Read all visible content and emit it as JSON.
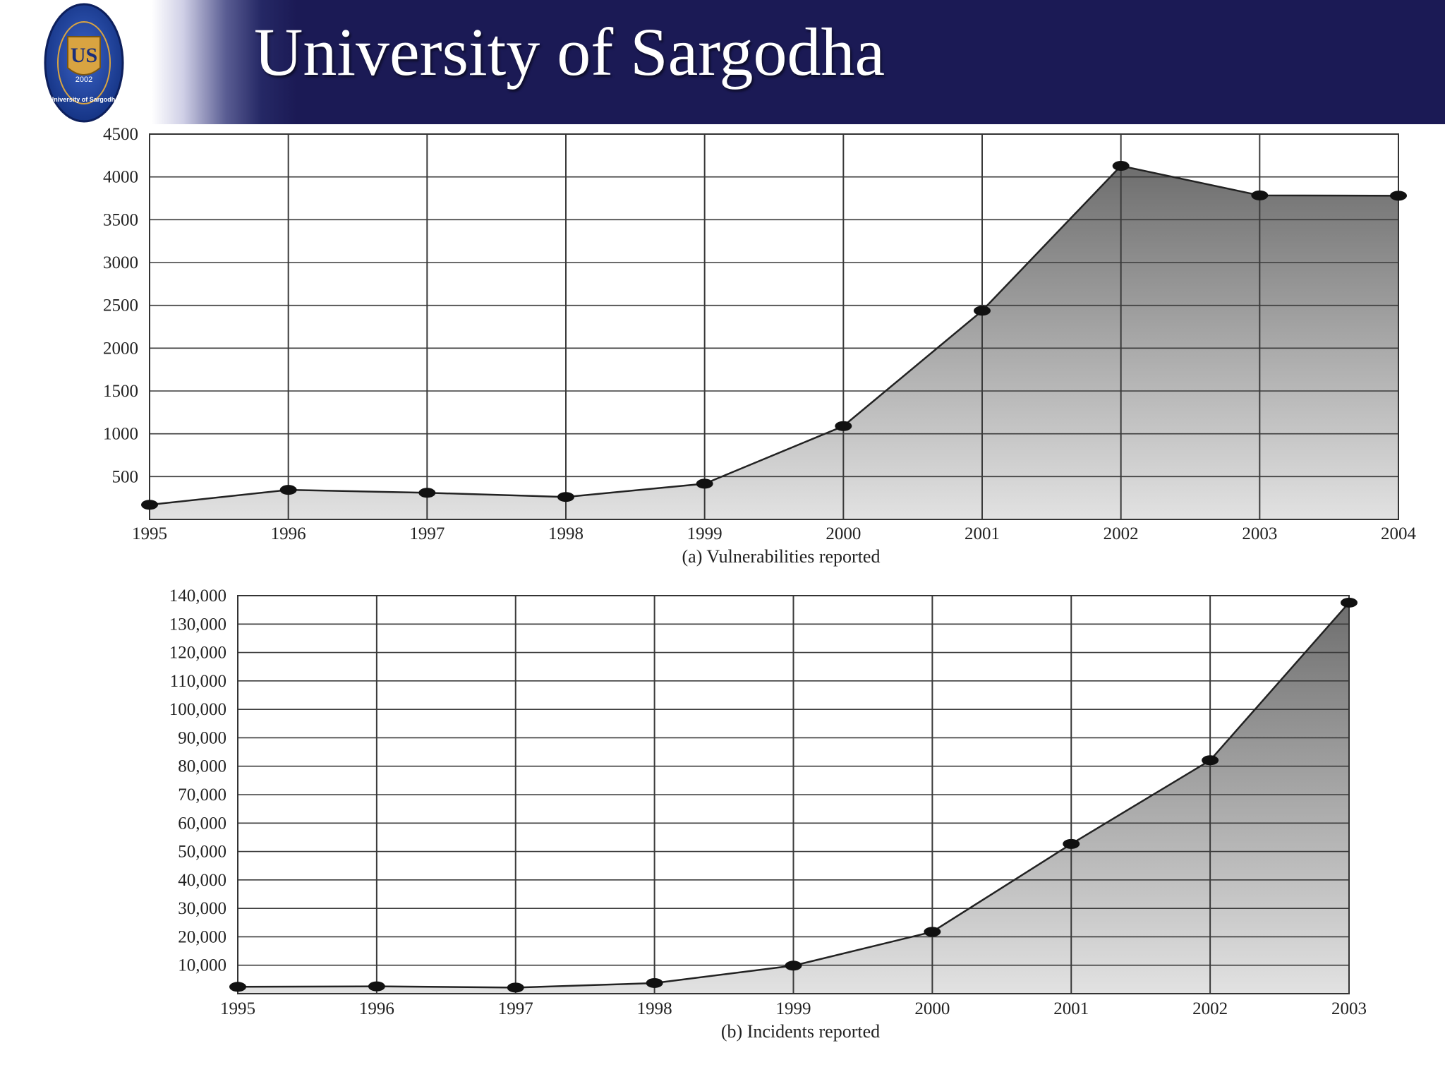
{
  "header": {
    "title": "University of Sargodha",
    "logo": {
      "monogram": "US",
      "year": "2002",
      "ring_text": "University of Sargodha"
    },
    "colors": {
      "banner": "#1b1a55",
      "logo_ring": "#1f3f9a",
      "logo_gold": "#d9a441"
    }
  },
  "chart_data": [
    {
      "type": "area",
      "title": "(a) Vulnerabilities reported",
      "x": [
        1995,
        1996,
        1997,
        1998,
        1999,
        2000,
        2001,
        2002,
        2003,
        2004
      ],
      "x_tick_labels": [
        "1995",
        "1996",
        "1997",
        "1998",
        "1999",
        "2000",
        "2001",
        "2002",
        "2003",
        "2004"
      ],
      "values": [
        171,
        345,
        311,
        262,
        417,
        1090,
        2437,
        4129,
        3784,
        3780
      ],
      "ylim": [
        0,
        4500
      ],
      "y_ticks": [
        500,
        1000,
        1500,
        2000,
        2500,
        3000,
        3500,
        4000,
        4500
      ],
      "y_tick_labels": [
        "500",
        "1000",
        "1500",
        "2000",
        "2500",
        "3000",
        "3500",
        "4000",
        "4500"
      ],
      "grid": true,
      "colors": {
        "fill_top": "#6e6e6e",
        "fill_bottom": "#e2e2e2",
        "line": "#222222",
        "grid": "#3a3a3a"
      }
    },
    {
      "type": "area",
      "title": "(b) Incidents reported",
      "x": [
        1995,
        1996,
        1997,
        1998,
        1999,
        2000,
        2001,
        2002,
        2003
      ],
      "x_tick_labels": [
        "1995",
        "1996",
        "1997",
        "1998",
        "1999",
        "2000",
        "2001",
        "2002",
        "2003"
      ],
      "values": [
        2412,
        2573,
        2134,
        3734,
        9859,
        21756,
        52658,
        82094,
        137529
      ],
      "ylim": [
        0,
        140000
      ],
      "y_ticks": [
        10000,
        20000,
        30000,
        40000,
        50000,
        60000,
        70000,
        80000,
        90000,
        100000,
        110000,
        120000,
        130000,
        140000
      ],
      "y_tick_labels": [
        "10,000",
        "20,000",
        "30,000",
        "40,000",
        "50,000",
        "60,000",
        "70,000",
        "80,000",
        "90,000",
        "100,000",
        "110,000",
        "120,000",
        "130,000",
        "140,000"
      ],
      "grid": true,
      "colors": {
        "fill_top": "#6e6e6e",
        "fill_bottom": "#e2e2e2",
        "line": "#222222",
        "grid": "#3a3a3a"
      }
    }
  ]
}
